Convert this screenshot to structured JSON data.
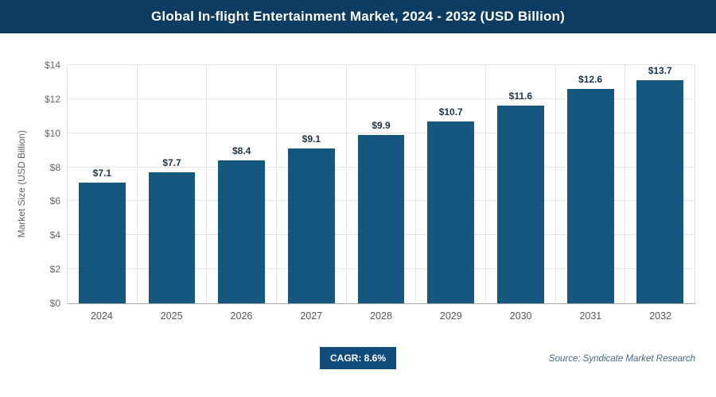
{
  "header": {
    "title": "Global In-flight Entertainment Market, 2024 - 2032 (USD Billion)"
  },
  "chart_data": {
    "type": "bar",
    "title": "Global In-flight Entertainment Market, 2024 - 2032 (USD Billion)",
    "categories": [
      "2024",
      "2025",
      "2026",
      "2027",
      "2028",
      "2029",
      "2030",
      "2031",
      "2032"
    ],
    "values": [
      7.1,
      7.7,
      8.4,
      9.1,
      9.9,
      10.7,
      11.6,
      12.6,
      13.7
    ],
    "value_labels": [
      "$7.1",
      "$7.7",
      "$8.4",
      "$9.1",
      "$9.9",
      "$10.7",
      "$11.6",
      "$12.6",
      "$13.7"
    ],
    "xlabel": "",
    "ylabel": "Market Size (USD Billion)",
    "ylim": [
      0,
      14
    ],
    "ytick_step": 2,
    "ytick_labels": [
      "$0",
      "$2",
      "$4",
      "$6",
      "$8",
      "$10",
      "$12",
      "$14"
    ],
    "grid": true,
    "legend": "none",
    "bar_color": "#15577f"
  },
  "footer": {
    "cagr_label": "CAGR: 8.6%",
    "source": "Source: Syndicate Market Research"
  },
  "colors": {
    "header_bg": "#0d3c62",
    "bar": "#15577f",
    "badge_bg": "#0f4c7c",
    "gridline": "#e3e3e3",
    "value_label": "#1c3348",
    "source_text": "#46688b"
  }
}
